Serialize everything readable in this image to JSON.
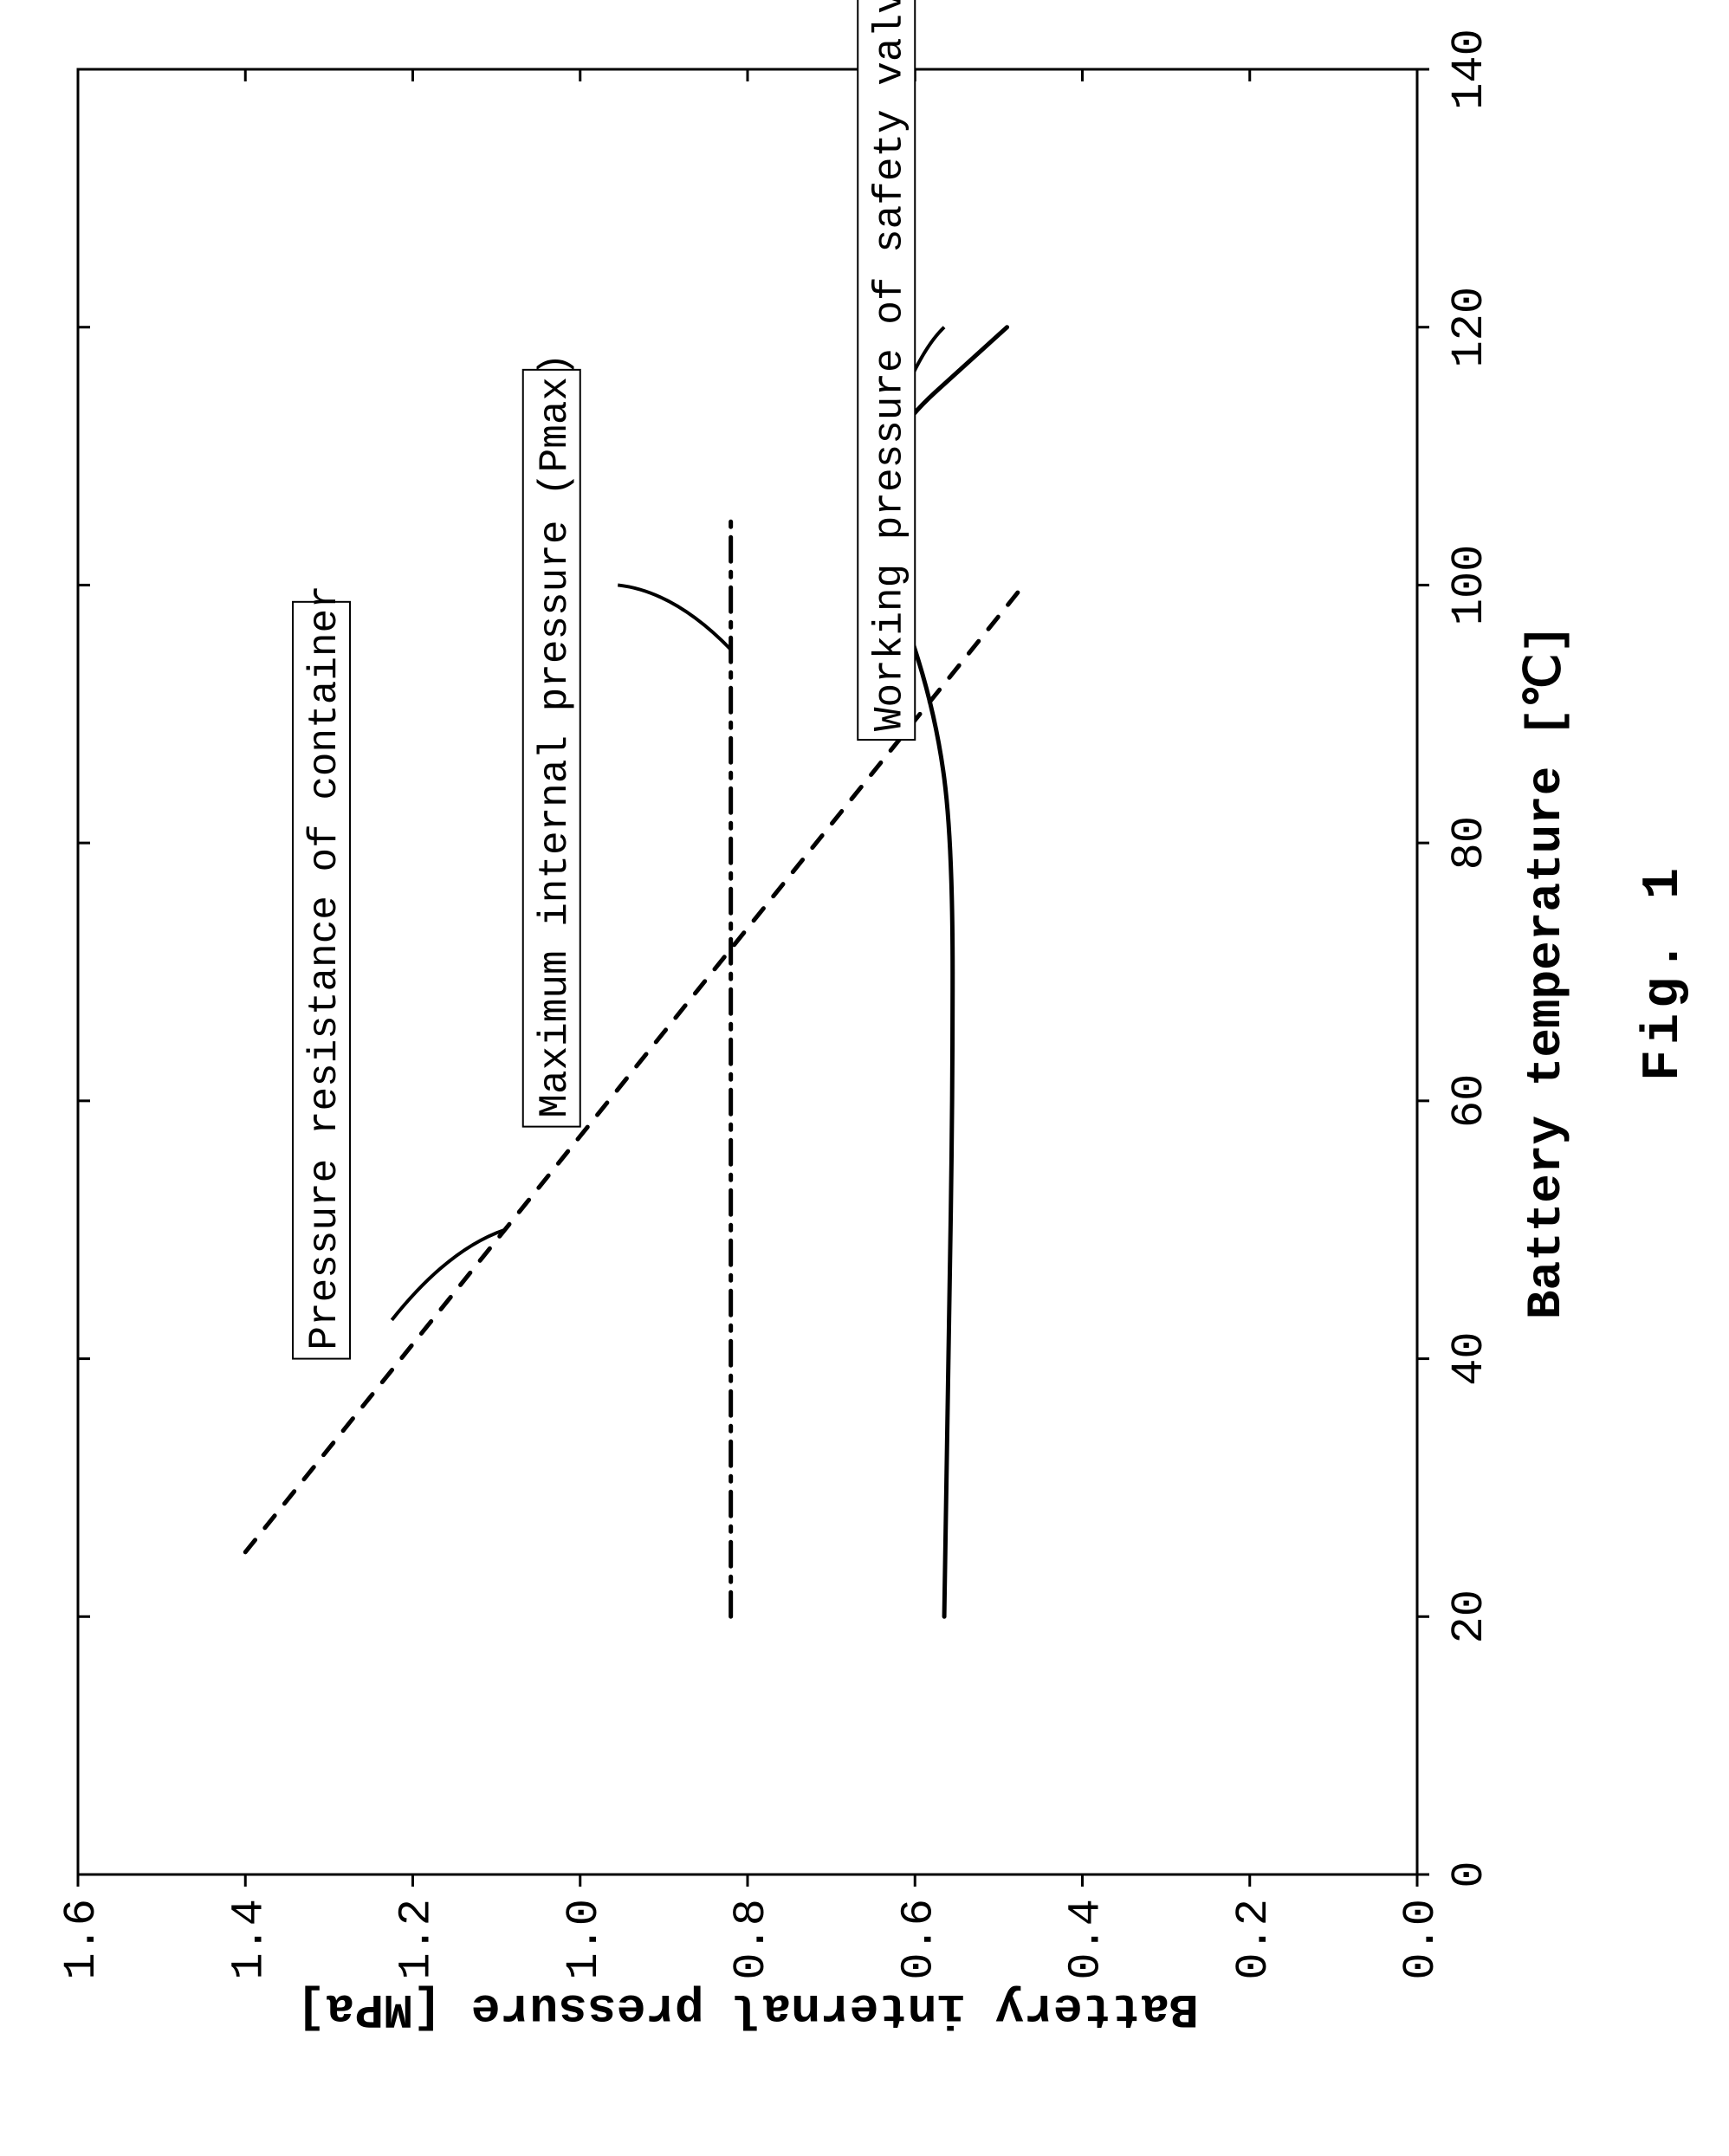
{
  "chart": {
    "type": "line",
    "figure_label": "Fig. 1",
    "xlabel": "Battery temperature [℃]",
    "ylabel": "Battery internal pressure [MPa]",
    "xlim": [
      0,
      140
    ],
    "ylim": [
      0.0,
      1.6
    ],
    "xtick_step": 20,
    "ytick_step": 0.2,
    "xticks": [
      0,
      20,
      40,
      60,
      80,
      100,
      120,
      140
    ],
    "yticks": [
      0.0,
      0.2,
      0.4,
      0.6,
      0.8,
      1.0,
      1.2,
      1.4,
      1.6
    ],
    "ytick_labels": [
      "0.0",
      "0.2",
      "0.4",
      "0.6",
      "0.8",
      "1.0",
      "1.2",
      "1.4",
      "1.6"
    ],
    "background_color": "#ffffff",
    "axis_color": "#000000",
    "axis_line_width": 3,
    "tick_length": 14,
    "axis_label_fontsize": 56,
    "tick_label_fontsize": 52,
    "figure_label_fontsize": 60,
    "plot_rotation_deg": -90,
    "series": {
      "pressure_resistance": {
        "label": "Pressure resistance of container",
        "color": "#000000",
        "line_width": 5,
        "dash": "18,18",
        "points": [
          {
            "x": 25,
            "y": 1.4
          },
          {
            "x": 100,
            "y": 0.47
          }
        ],
        "leader_from": {
          "x": 50,
          "y": 1.09
        },
        "leader_to": {
          "x": 43,
          "y": 1.225
        }
      },
      "pmax": {
        "label": "Maximum internal pressure (Pmax)",
        "color": "#000000",
        "line_width": 5,
        "dash": "28,12,6,12",
        "points": [
          {
            "x": 20,
            "y": 0.82
          },
          {
            "x": 105,
            "y": 0.82
          }
        ],
        "leader_from": {
          "x": 95,
          "y": 0.82
        },
        "leader_to": {
          "x": 100,
          "y": 0.955
        }
      },
      "working_pressure": {
        "label": "Working pressure of safety valve",
        "color": "#000000",
        "line_width": 5,
        "dash": "",
        "points": [
          {
            "x": 20,
            "y": 0.565
          },
          {
            "x": 40,
            "y": 0.56
          },
          {
            "x": 60,
            "y": 0.555
          },
          {
            "x": 80,
            "y": 0.555
          },
          {
            "x": 90,
            "y": 0.575
          },
          {
            "x": 100,
            "y": 0.625
          },
          {
            "x": 110,
            "y": 0.66
          },
          {
            "x": 120,
            "y": 0.49
          }
        ],
        "leader_from": {
          "x": 112,
          "y": 0.63
        },
        "leader_to": {
          "x": 120,
          "y": 0.565
        }
      }
    },
    "callouts": {
      "pressure_resistance": {
        "anchor_x": 40,
        "anchor_y": 1.275
      },
      "pmax": {
        "anchor_x": 58,
        "anchor_y": 1.0
      },
      "working_pressure": {
        "anchor_x": 88,
        "anchor_y": 0.6
      }
    },
    "callout_box": {
      "border_color": "#000000",
      "border_width": 2,
      "fill": "#ffffff",
      "fontsize": 46,
      "padding_x": 10,
      "padding_y": 10
    }
  }
}
